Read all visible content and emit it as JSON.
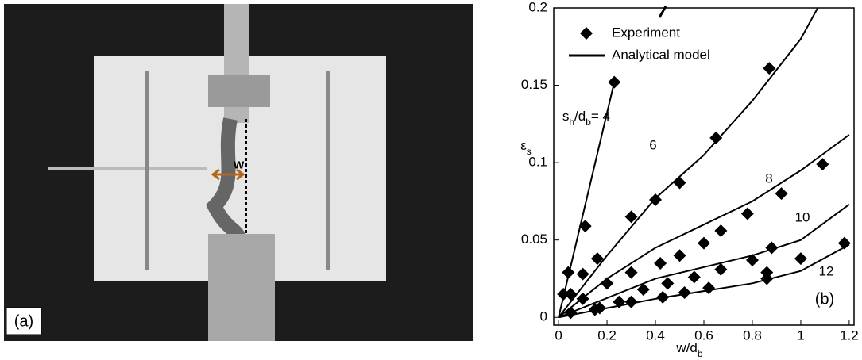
{
  "photo": {
    "panel_label": "(a)",
    "annotation": "w"
  },
  "chart_data": {
    "type": "scatter",
    "legend": [
      "Experiment",
      "Analytical model"
    ],
    "x_label": [
      "w/d",
      "b"
    ],
    "y_label": [
      "ε",
      "s"
    ],
    "series_label_prefix": [
      "s",
      "h",
      "/d",
      "b",
      "= "
    ],
    "panel_label": "(b)",
    "color": "#000000",
    "xlim": [
      -0.02,
      1.22
    ],
    "ylim": [
      -0.005,
      0.2
    ],
    "xticks": [
      0,
      0.2,
      0.4,
      0.6,
      0.8,
      1,
      1.2
    ],
    "yticks": [
      0,
      0.05,
      0.1,
      0.15,
      0.2
    ],
    "series": [
      {
        "name": "4",
        "x": [
          0.02,
          0.04,
          0.11,
          0.23
        ],
        "values": [
          0.015,
          0.029,
          0.059,
          0.152
        ],
        "model": {
          "x": [
            0,
            0.23
          ],
          "values": [
            0,
            0.152
          ]
        }
      },
      {
        "name": "6",
        "x": [
          0.05,
          0.1,
          0.16,
          0.3,
          0.4,
          0.5,
          0.65,
          0.87
        ],
        "values": [
          0.015,
          0.028,
          0.038,
          0.065,
          0.076,
          0.087,
          0.116,
          0.161
        ],
        "model": {
          "x": [
            0,
            0.2,
            0.4,
            0.6,
            0.8,
            1.0,
            1.07
          ],
          "values": [
            0,
            0.04,
            0.077,
            0.105,
            0.14,
            0.18,
            0.2
          ]
        }
      },
      {
        "name": "8",
        "x": [
          0.1,
          0.2,
          0.3,
          0.42,
          0.5,
          0.6,
          0.67,
          0.78,
          0.92,
          1.09
        ],
        "values": [
          0.012,
          0.022,
          0.029,
          0.035,
          0.04,
          0.048,
          0.056,
          0.067,
          0.08,
          0.099
        ],
        "model": {
          "x": [
            0,
            0.2,
            0.4,
            0.6,
            0.8,
            1.0,
            1.2
          ],
          "values": [
            0,
            0.025,
            0.045,
            0.06,
            0.075,
            0.095,
            0.118
          ]
        }
      },
      {
        "name": "10",
        "x": [
          0.17,
          0.25,
          0.35,
          0.45,
          0.56,
          0.67,
          0.8,
          0.88,
          1.0
        ],
        "values": [
          0.006,
          0.01,
          0.018,
          0.022,
          0.026,
          0.031,
          0.037,
          0.045,
          0.038
        ],
        "model": {
          "x": [
            0,
            0.4,
            0.8,
            1.0,
            1.2
          ],
          "values": [
            0,
            0.025,
            0.04,
            0.05,
            0.073
          ]
        }
      },
      {
        "name": "12",
        "x": [
          0.05,
          0.15,
          0.3,
          0.43,
          0.52,
          0.62,
          0.86,
          0.86,
          1.18
        ],
        "values": [
          0.003,
          0.005,
          0.01,
          0.013,
          0.016,
          0.019,
          0.025,
          0.029,
          0.048
        ],
        "model": {
          "x": [
            0,
            0.4,
            0.8,
            1.0,
            1.2
          ],
          "values": [
            0,
            0.012,
            0.022,
            0.03,
            0.047
          ]
        }
      }
    ]
  }
}
